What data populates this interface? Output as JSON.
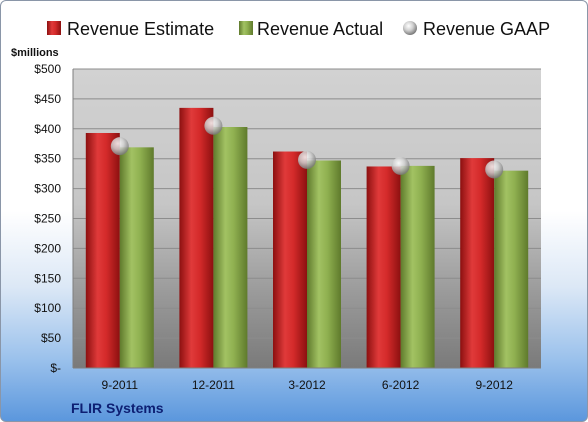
{
  "chart_data": {
    "type": "bar",
    "company": "FLIR Systems",
    "ylabel": "$millions",
    "ylim": [
      0,
      500
    ],
    "y_ticks": [
      {
        "value": 0,
        "label": "$-"
      },
      {
        "value": 50,
        "label": "$50"
      },
      {
        "value": 100,
        "label": "$100"
      },
      {
        "value": 150,
        "label": "$150"
      },
      {
        "value": 200,
        "label": "$200"
      },
      {
        "value": 250,
        "label": "$250"
      },
      {
        "value": 300,
        "label": "$300"
      },
      {
        "value": 350,
        "label": "$350"
      },
      {
        "value": 400,
        "label": "$400"
      },
      {
        "value": 450,
        "label": "$450"
      },
      {
        "value": 500,
        "label": "$500"
      }
    ],
    "categories": [
      "9-2011",
      "12-2011",
      "3-2012",
      "6-2012",
      "9-2012"
    ],
    "series": [
      {
        "name": "Revenue Estimate",
        "values": [
          393,
          435,
          362,
          337,
          351
        ],
        "color": "#d42a2a"
      },
      {
        "name": "Revenue Actual",
        "values": [
          369,
          403,
          347,
          338,
          330
        ],
        "color": "#8fb050"
      },
      {
        "name": "Revenue GAAP",
        "values": [
          371,
          405,
          348,
          338,
          332
        ],
        "color": "#b8b8b8"
      }
    ],
    "grid": true,
    "legend_position": "top"
  }
}
